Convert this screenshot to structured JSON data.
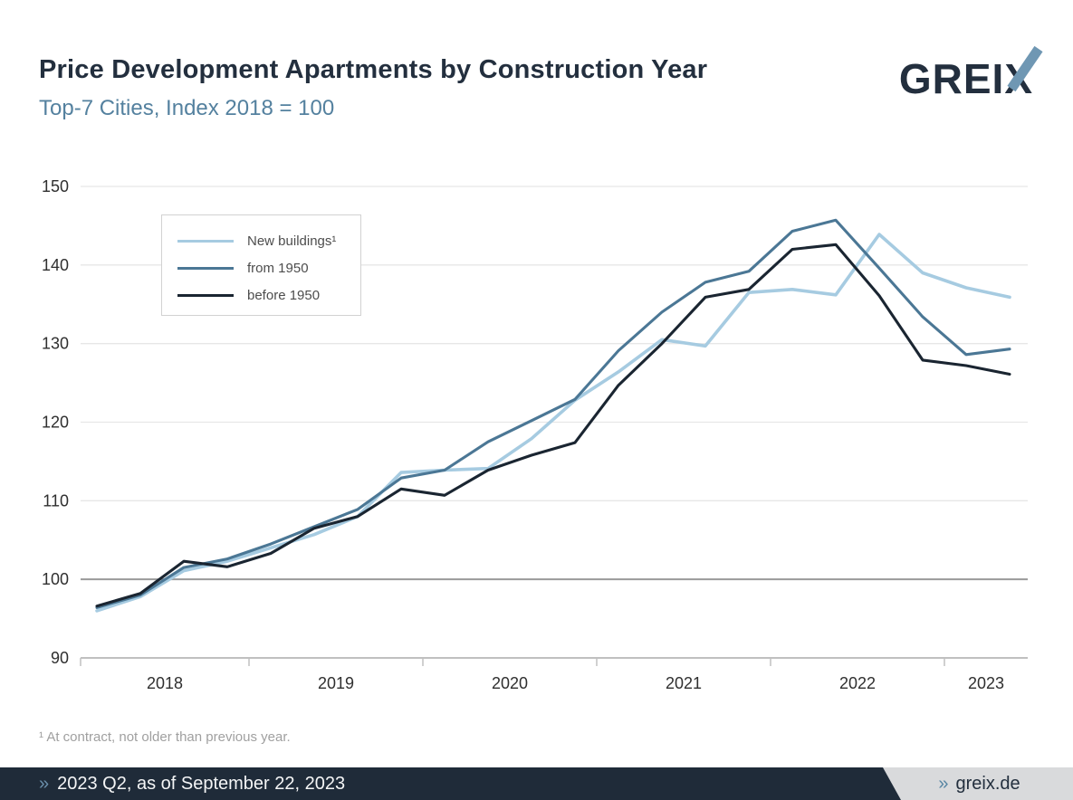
{
  "header": {
    "title": "Price Development Apartments by Construction Year",
    "subtitle": "Top-7 Cities, Index 2018 = 100",
    "logo_prefix": "GREI",
    "logo_x": "X"
  },
  "colors": {
    "brand_navy": "#232f3e",
    "brand_blue": "#6f97b3",
    "subtitle_blue": "#54819f",
    "grid_light": "#e7e7e7",
    "grid_baseline": "#9a9a9a",
    "axis_gray": "#c0c0c0",
    "footer_bar": "#1f2b39",
    "footer_tab": "#d9dadc"
  },
  "chart_data": {
    "type": "line",
    "title": "Price Development Apartments by Construction Year",
    "subtitle": "Top-7 Cities, Index 2018 = 100",
    "x_categories": [
      "2018 Q1",
      "2018 Q2",
      "2018 Q3",
      "2018 Q4",
      "2019 Q1",
      "2019 Q2",
      "2019 Q3",
      "2019 Q4",
      "2020 Q1",
      "2020 Q2",
      "2020 Q3",
      "2020 Q4",
      "2021 Q1",
      "2021 Q2",
      "2021 Q3",
      "2021 Q4",
      "2022 Q1",
      "2022 Q2",
      "2022 Q3",
      "2022 Q4",
      "2023 Q1",
      "2023 Q2"
    ],
    "x_axis_year_labels": [
      "2018",
      "2019",
      "2020",
      "2021",
      "2022",
      "2023"
    ],
    "y_ticks": [
      90,
      100,
      110,
      120,
      130,
      140,
      150
    ],
    "ylim": [
      90,
      150
    ],
    "baseline_value": 100,
    "grid": "horizontal",
    "legend_position": "top-left-inset",
    "series": [
      {
        "name": "New buildings¹",
        "color": "#a6cbe1",
        "values": [
          96.0,
          97.8,
          101.1,
          102.3,
          104.0,
          105.7,
          108.0,
          113.6,
          113.9,
          114.1,
          117.9,
          122.8,
          126.4,
          130.5,
          129.7,
          136.5,
          136.9,
          136.2,
          143.9,
          139.0,
          137.1,
          135.9
        ]
      },
      {
        "name": "from 1950",
        "color": "#4b7795",
        "values": [
          96.4,
          98.0,
          101.5,
          102.6,
          104.5,
          106.7,
          108.9,
          112.9,
          113.9,
          117.5,
          120.2,
          122.9,
          129.1,
          134.0,
          137.8,
          139.2,
          144.3,
          145.7,
          139.6,
          133.4,
          128.6,
          129.3
        ]
      },
      {
        "name": "before 1950",
        "color": "#1a2531",
        "values": [
          96.6,
          98.2,
          102.3,
          101.6,
          103.3,
          106.5,
          108.0,
          111.5,
          110.7,
          113.9,
          115.8,
          117.4,
          124.7,
          130.0,
          135.9,
          136.9,
          142.0,
          142.6,
          136.1,
          127.9,
          127.2,
          126.1
        ]
      }
    ]
  },
  "footnote": {
    "text": "¹ At contract, not older than previous year."
  },
  "footer": {
    "marker": "»",
    "left_text": "2023 Q2, as of September 22, 2023",
    "site_marker": "»",
    "site_text": "greix.de"
  }
}
